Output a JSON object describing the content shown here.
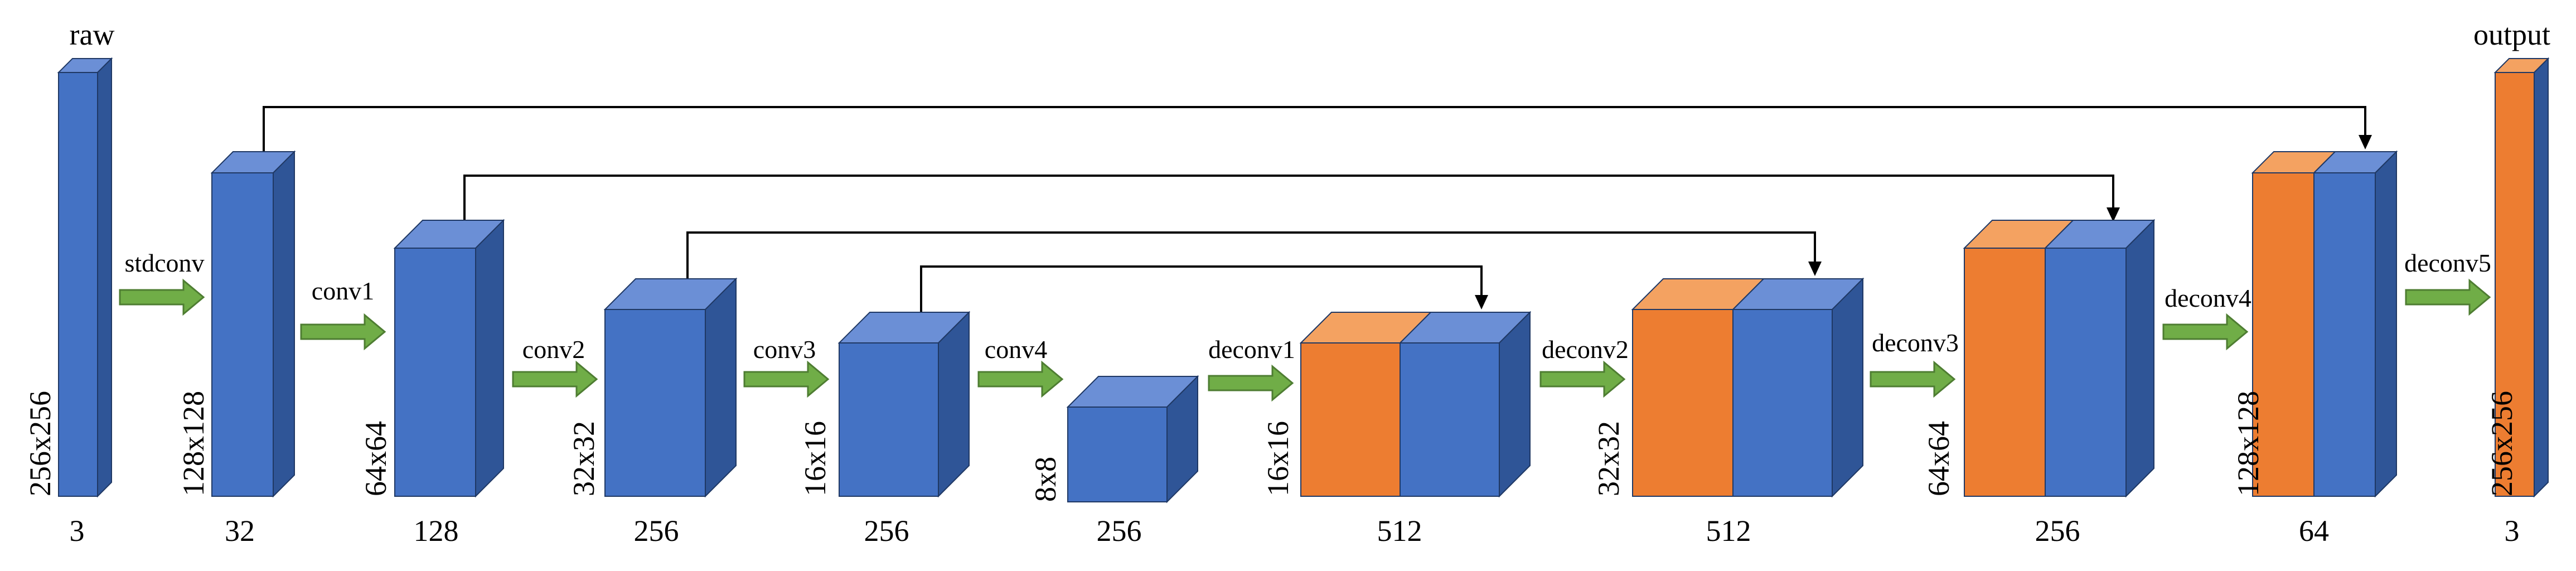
{
  "colors": {
    "blue_front": "#4472C4",
    "blue_top": "#6B8FD6",
    "blue_side": "#2F5597",
    "orange_front": "#ED7D31",
    "orange_top": "#F4A261",
    "arrow_green": "#70AD47",
    "arrow_stroke": "#4E7D32",
    "connector": "#000000"
  },
  "header_labels": {
    "input": "raw",
    "output": "output"
  },
  "layers": [
    {
      "id": "raw",
      "size_label": "256x256",
      "channels": "3",
      "color": "blue"
    },
    {
      "id": "stdconv-out",
      "size_label": "128x128",
      "channels": "32",
      "color": "blue"
    },
    {
      "id": "conv1-out",
      "size_label": "64x64",
      "channels": "128",
      "color": "blue"
    },
    {
      "id": "conv2-out",
      "size_label": "32x32",
      "channels": "256",
      "color": "blue"
    },
    {
      "id": "conv3-out",
      "size_label": "16x16",
      "channels": "256",
      "color": "blue"
    },
    {
      "id": "conv4-out",
      "size_label": "8x8",
      "channels": "256",
      "color": "blue"
    },
    {
      "id": "deconv1-out",
      "size_label": "16x16",
      "channels": "512",
      "color": "orange+blue"
    },
    {
      "id": "deconv2-out",
      "size_label": "32x32",
      "channels": "512",
      "color": "orange+blue"
    },
    {
      "id": "deconv3-out",
      "size_label": "64x64",
      "channels": "256",
      "color": "orange+blue"
    },
    {
      "id": "deconv4-out",
      "size_label": "128x128",
      "channels": "64",
      "color": "orange+blue"
    },
    {
      "id": "output",
      "size_label": "256x256",
      "channels": "3",
      "color": "orange"
    }
  ],
  "operations": [
    "stdconv",
    "conv1",
    "conv2",
    "conv3",
    "conv4",
    "deconv1",
    "deconv2",
    "deconv3",
    "deconv4",
    "deconv5"
  ],
  "skip_connections": [
    {
      "from": "stdconv-out",
      "to": "deconv4-out"
    },
    {
      "from": "conv1-out",
      "to": "deconv3-out"
    },
    {
      "from": "conv2-out",
      "to": "deconv2-out"
    },
    {
      "from": "conv3-out",
      "to": "deconv1-out"
    }
  ]
}
